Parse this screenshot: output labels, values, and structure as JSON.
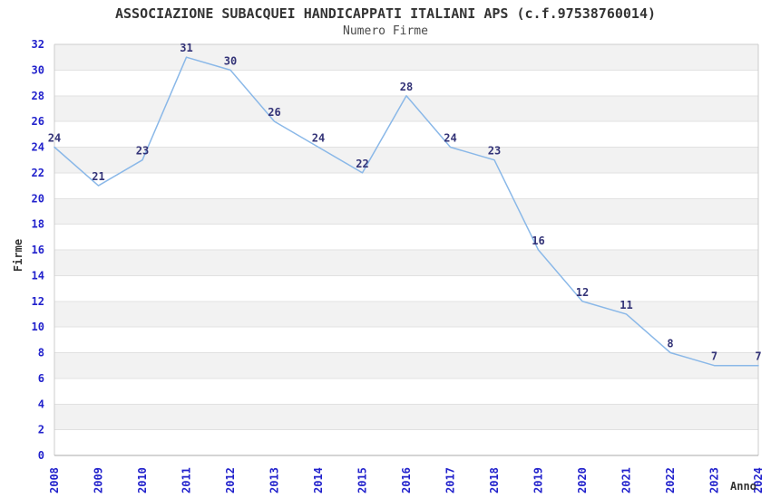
{
  "header": {
    "title": "ASSOCIAZIONE SUBACQUEI HANDICAPPATI ITALIANI APS (c.f.97538760014)",
    "subtitle": "Numero Firme"
  },
  "chart_data": {
    "type": "line",
    "title": "Numero Firme",
    "x": [
      "2008",
      "2009",
      "2010",
      "2011",
      "2012",
      "2013",
      "2014",
      "2015",
      "2016",
      "2017",
      "2018",
      "2019",
      "2020",
      "2021",
      "2022",
      "2023",
      "2024"
    ],
    "values": [
      24,
      21,
      23,
      31,
      30,
      26,
      24,
      22,
      28,
      24,
      23,
      16,
      12,
      11,
      8,
      7,
      7
    ],
    "xlabel": "Anno",
    "ylabel": "Firme",
    "ylim": [
      0,
      32
    ],
    "ytick_step": 2,
    "grid": true,
    "banded_background": true,
    "legend_position": "none",
    "data_labels_shown": true,
    "colors": {
      "line": "#8ab8e8",
      "tick_label": "#2222cc",
      "data_label": "#333377",
      "band_fill": "#f2f2f2",
      "gridline": "#e1e1e1",
      "plot_border": "#cccccc",
      "axis_line": "#aaaaaa",
      "title": "#333333",
      "subtitle": "#4a4a4a",
      "axis_title": "#333333",
      "background": "#ffffff"
    }
  }
}
